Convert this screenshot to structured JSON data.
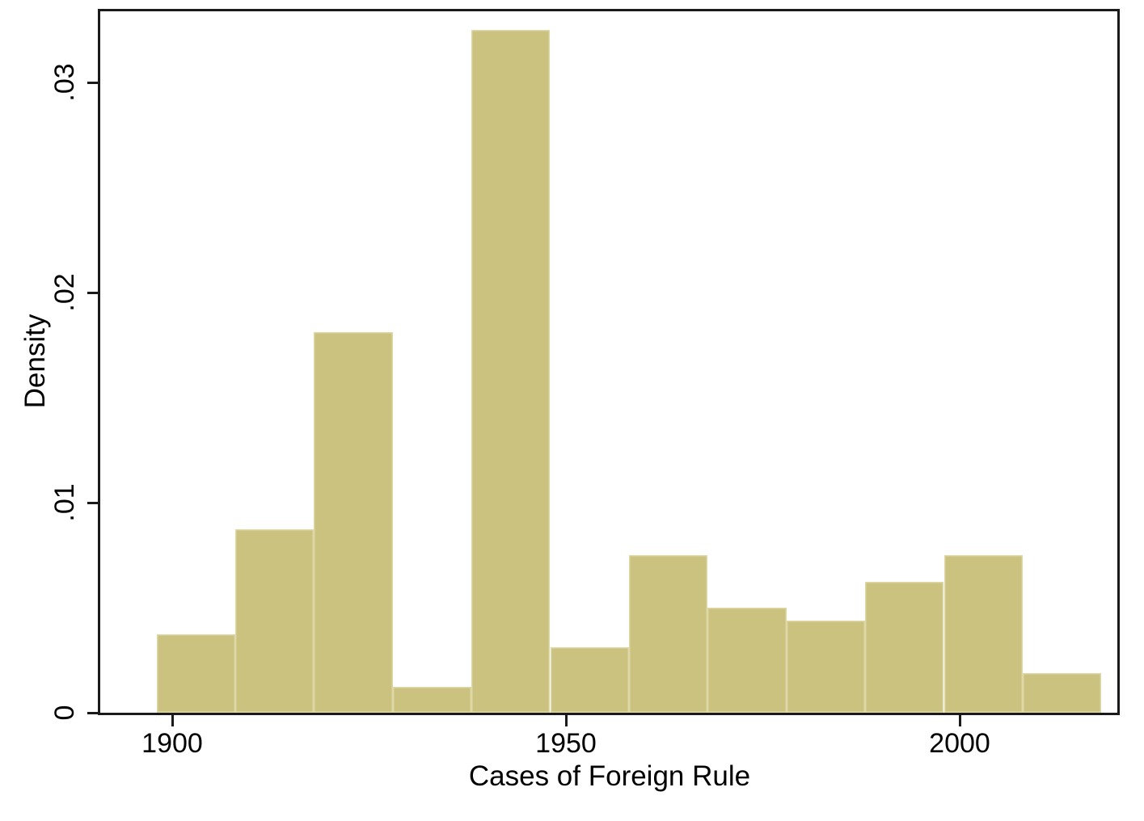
{
  "chart_data": {
    "type": "bar",
    "subtype": "histogram",
    "title": "",
    "xlabel": "Cases of Foreign Rule",
    "ylabel": "Density",
    "x_tick_values": [
      1900,
      1950,
      2000
    ],
    "x_tick_labels": [
      "1900",
      "1950",
      "2000"
    ],
    "y_tick_values": [
      0,
      0.01,
      0.02,
      0.03
    ],
    "y_tick_labels": [
      "0",
      ".01",
      ".02",
      ".03"
    ],
    "xlim": [
      1890.8,
      2020.2
    ],
    "ylim": [
      0,
      0.0335
    ],
    "grid": "off",
    "legend": "none",
    "bin_width_years": 10,
    "bin_edges": [
      1898,
      1908,
      1918,
      1928,
      1938,
      1948,
      1958,
      1968,
      1978,
      1988,
      1998,
      2008,
      2018
    ],
    "densities": [
      0.00375,
      0.00875,
      0.018125,
      0.00125,
      0.0325,
      0.003125,
      0.0075,
      0.005,
      0.004375,
      0.00625,
      0.0075,
      0.001875
    ],
    "colors": {
      "bar_fill": "#CAC27E",
      "bar_edge": "#DED7A6",
      "axis": "#1A1A1A",
      "text": "#000000",
      "background": "#FFFFFF"
    }
  }
}
